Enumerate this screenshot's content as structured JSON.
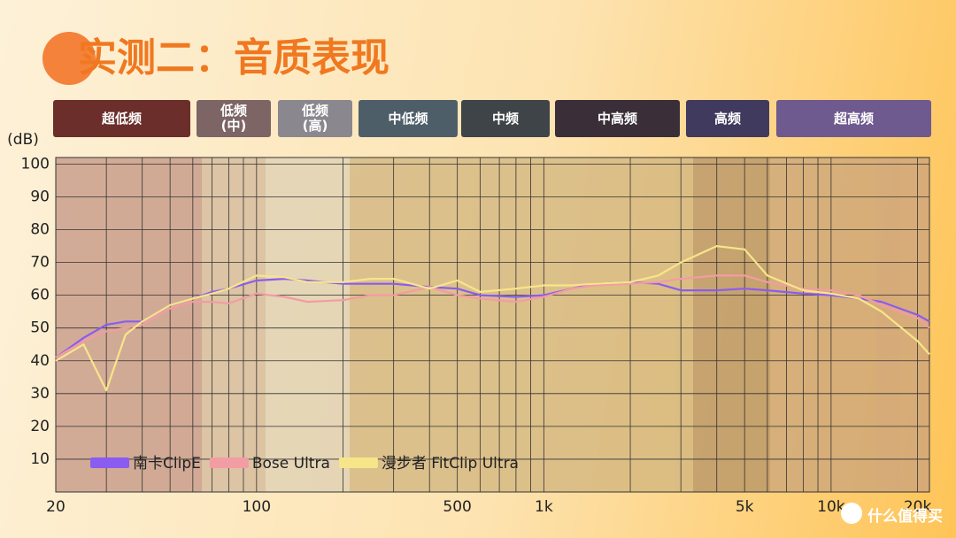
{
  "chart_data": {
    "type": "line",
    "title": "实测二：音质表现",
    "y_label": "(dB)",
    "bands": [
      {
        "label": "超低频",
        "color": "#6b2e2a"
      },
      {
        "label": "低频\n(中)",
        "color": "#7d6565"
      },
      {
        "label": "低频\n(高)",
        "color": "#8a888e"
      },
      {
        "label": "中低频",
        "color": "#4e5e68"
      },
      {
        "label": "中频",
        "color": "#3e4448"
      },
      {
        "label": "中高频",
        "color": "#3a2e38"
      },
      {
        "label": "高频",
        "color": "#3f3a5e"
      },
      {
        "label": "超高频",
        "color": "#6e5a8e"
      }
    ],
    "log_x": true,
    "xlim": [
      20,
      22000
    ],
    "ylim": [
      0,
      102
    ],
    "yticks": [
      10,
      20,
      30,
      40,
      50,
      60,
      70,
      80,
      90,
      100
    ],
    "xticks": [
      20,
      100,
      500,
      {
        "value": 1000,
        "label": "1k"
      },
      {
        "value": 5000,
        "label": "5k"
      },
      {
        "value": 10000,
        "label": "10k"
      },
      {
        "value": 20000,
        "label": "20k"
      }
    ],
    "xgrid": [
      30,
      40,
      50,
      60,
      70,
      80,
      90,
      200,
      300,
      400,
      600,
      700,
      800,
      900,
      2000,
      3000,
      4000,
      6000,
      7000,
      8000,
      9000
    ],
    "grid": true,
    "x": [
      20,
      25,
      30,
      35,
      40,
      50,
      60,
      70,
      80,
      100,
      125,
      150,
      200,
      250,
      300,
      400,
      500,
      600,
      800,
      1000,
      1250,
      1500,
      2000,
      2500,
      3000,
      4000,
      5000,
      6000,
      8000,
      10000,
      12500,
      15000,
      20000,
      22000
    ],
    "series": [
      {
        "name": "南卡ClipE",
        "color": "#8a5cf0",
        "values": [
          41,
          47,
          51,
          52,
          52,
          57,
          59,
          61,
          62,
          64.5,
          65,
          64.5,
          63.5,
          63.5,
          63.5,
          62.5,
          62,
          60,
          59.5,
          60,
          62,
          63.5,
          64,
          63.5,
          61.5,
          61.5,
          62,
          61.5,
          60.5,
          60,
          59,
          58,
          54,
          52
        ]
      },
      {
        "name": "Bose Ultra",
        "color": "#f29ca3",
        "values": [
          41,
          46,
          49,
          50,
          51,
          56,
          58,
          58,
          57.5,
          60.5,
          59.5,
          58,
          58.5,
          60,
          60,
          62.5,
          60,
          59,
          58,
          59.5,
          62,
          63,
          63.5,
          64,
          65,
          66,
          66,
          64,
          62,
          61.5,
          60,
          57,
          53,
          50
        ]
      },
      {
        "name": "漫步者 FitClip Ultra",
        "color": "#f7e58a",
        "values": [
          40,
          45,
          31,
          48,
          52,
          57,
          59,
          60.5,
          62,
          66,
          65.5,
          64,
          64,
          65,
          65,
          62,
          64.5,
          61,
          62,
          63,
          63,
          63.5,
          64,
          66,
          70,
          75,
          74,
          66,
          61.5,
          60.5,
          59,
          55,
          46,
          42
        ]
      }
    ],
    "legend": "lower-left",
    "watermark": "什么值得买"
  }
}
